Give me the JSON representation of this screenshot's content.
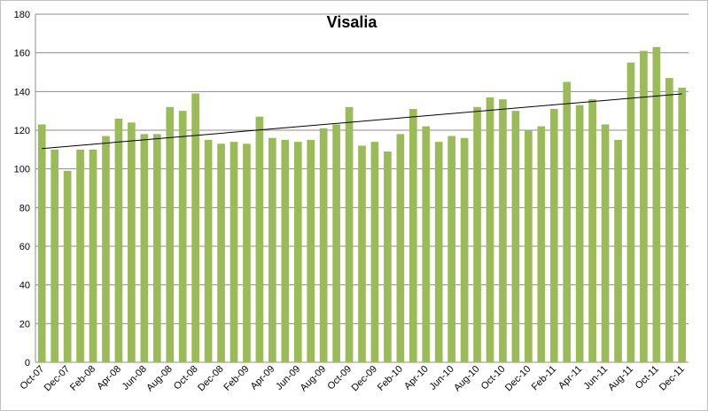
{
  "chart_data": {
    "type": "bar",
    "title": "Visalia",
    "categories": [
      "Oct-07",
      null,
      "Dec-07",
      null,
      "Feb-08",
      null,
      "Apr-08",
      null,
      "Jun-08",
      null,
      "Aug-08",
      null,
      "Oct-08",
      null,
      "Dec-08",
      null,
      "Feb-09",
      null,
      "Apr-09",
      null,
      "Jun-09",
      null,
      "Aug-09",
      null,
      "Oct-09",
      null,
      "Dec-09",
      null,
      "Feb-10",
      null,
      "Apr-10",
      null,
      "Jun-10",
      null,
      "Aug-10",
      null,
      "Oct-10",
      null,
      "Dec-10",
      null,
      "Feb-11",
      null,
      "Apr-11",
      null,
      "Jun-11",
      null,
      "Aug-11",
      null,
      "Oct-11",
      null,
      "Dec-11"
    ],
    "values": [
      123,
      110,
      99,
      110,
      110,
      117,
      126,
      124,
      118,
      118,
      132,
      130,
      139,
      115,
      113,
      114,
      113,
      127,
      116,
      115,
      114,
      115,
      121,
      123,
      132,
      112,
      114,
      109,
      118,
      131,
      122,
      114,
      117,
      116,
      132,
      137,
      136,
      130,
      120,
      122,
      131,
      145,
      133,
      136,
      123,
      115,
      155,
      161,
      163,
      147,
      142
    ],
    "color": "#9bbb59",
    "trend": [
      110.5,
      138.8
    ],
    "ylim": [
      0,
      180
    ],
    "yticks": [
      0,
      20,
      40,
      60,
      80,
      100,
      120,
      140,
      160,
      180
    ],
    "grid": true
  }
}
